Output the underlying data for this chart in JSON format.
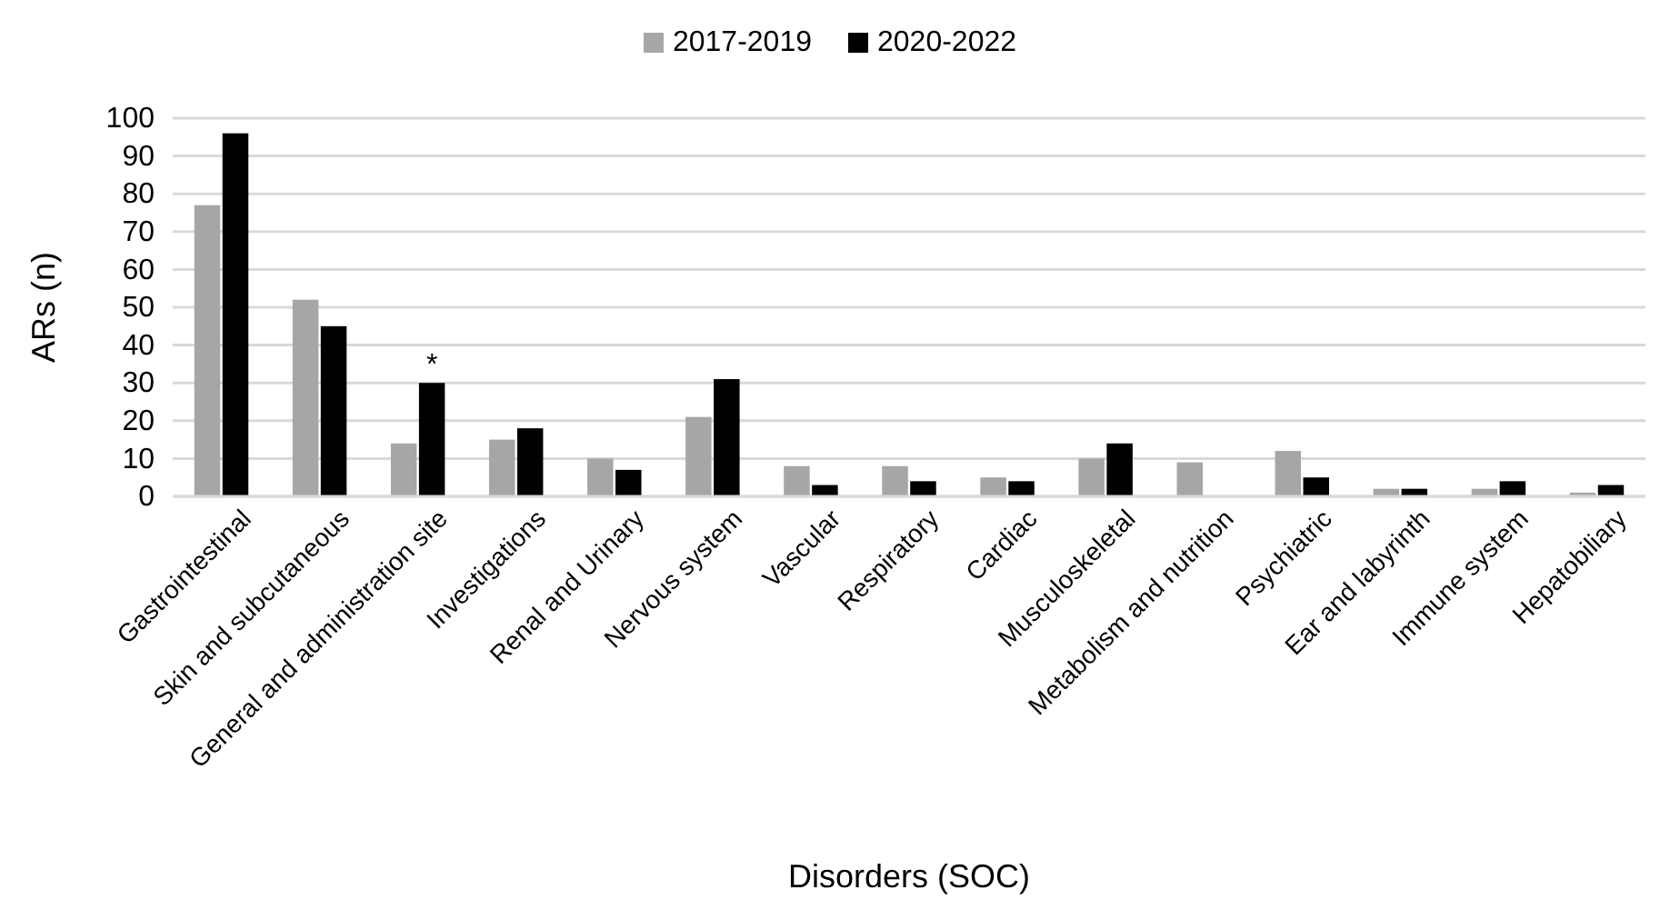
{
  "chart_data": {
    "type": "bar",
    "xlabel": "Disorders (SOC)",
    "ylabel": "ARs (n)",
    "categories": [
      "Gastrointestinal",
      "Skin and subcutaneous",
      "General and administration site",
      "Investigations",
      "Renal and Urinary",
      "Nervous system",
      "Vascular",
      "Respiratory",
      "Cardiac",
      "Musculoskeletal",
      "Metabolism and nutrition",
      "Psychiatric",
      "Ear and labyrinth",
      "Immune system",
      "Hepatobiliary"
    ],
    "series": [
      {
        "name": "2017-2019",
        "color": "#a6a6a6",
        "values": [
          77,
          52,
          14,
          15,
          10,
          21,
          8,
          8,
          5,
          10,
          9,
          12,
          2,
          2,
          1
        ]
      },
      {
        "name": "2020-2022",
        "color": "#000000",
        "values": [
          96,
          45,
          30,
          18,
          7,
          31,
          3,
          4,
          4,
          14,
          0,
          5,
          2,
          4,
          3
        ]
      }
    ],
    "ylim": [
      0,
      100
    ],
    "yticks": [
      0,
      10,
      20,
      30,
      40,
      50,
      60,
      70,
      80,
      90,
      100
    ],
    "grid": "y",
    "legend": "top",
    "annotations": [
      {
        "text": "*",
        "x": "General and administration site",
        "y": 30
      }
    ]
  }
}
